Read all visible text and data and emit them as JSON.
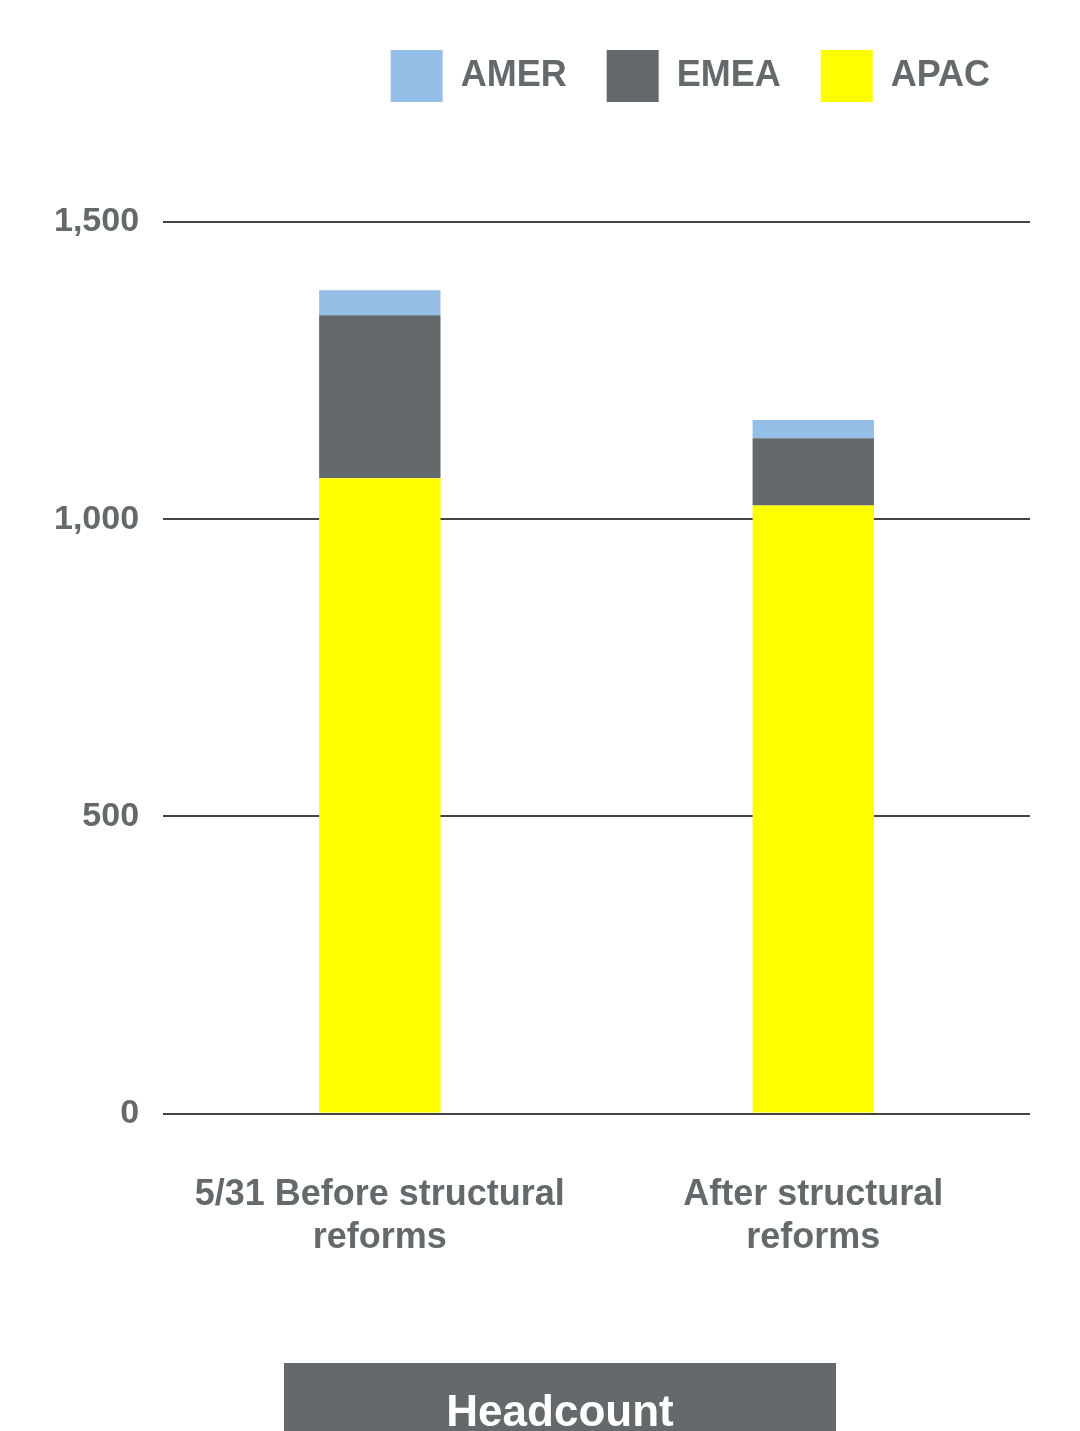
{
  "chart_data": {
    "type": "bar",
    "stacked": true,
    "categories": [
      "5/31 Before structural reforms",
      "After structural reforms"
    ],
    "series": [
      {
        "name": "APAC",
        "color": "#ffff00",
        "values": [
          1069,
          1023
        ]
      },
      {
        "name": "EMEA",
        "color": "#646a6c",
        "values": [
          274,
          113
        ]
      },
      {
        "name": "AMER",
        "color": "#95bfe6",
        "values": [
          42,
          31
        ]
      }
    ],
    "ylim": [
      0,
      1500
    ],
    "yticks": [
      0,
      {
        "value": 500,
        "label": "500"
      },
      {
        "value": 1000,
        "label": "1,000"
      },
      {
        "value": 1500,
        "label": "1,500"
      }
    ],
    "grid": "y",
    "legend": "top right",
    "xlabel": "Headcount"
  }
}
